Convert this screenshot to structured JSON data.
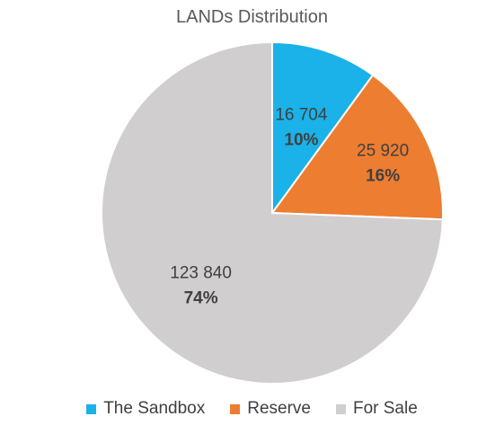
{
  "chart_data": {
    "type": "pie",
    "title": "LANDs Distribution",
    "legend_position": "bottom",
    "slices": [
      {
        "name": "The Sandbox",
        "value": 16704,
        "value_label": "16 704",
        "percent_label": "10%",
        "color": "#1AB2E8"
      },
      {
        "name": "Reserve",
        "value": 25920,
        "value_label": "25 920",
        "percent_label": "16%",
        "color": "#ED7D31"
      },
      {
        "name": "For Sale",
        "value": 123840,
        "value_label": "123 840",
        "percent_label": "74%",
        "color": "#D0CECE"
      }
    ]
  }
}
